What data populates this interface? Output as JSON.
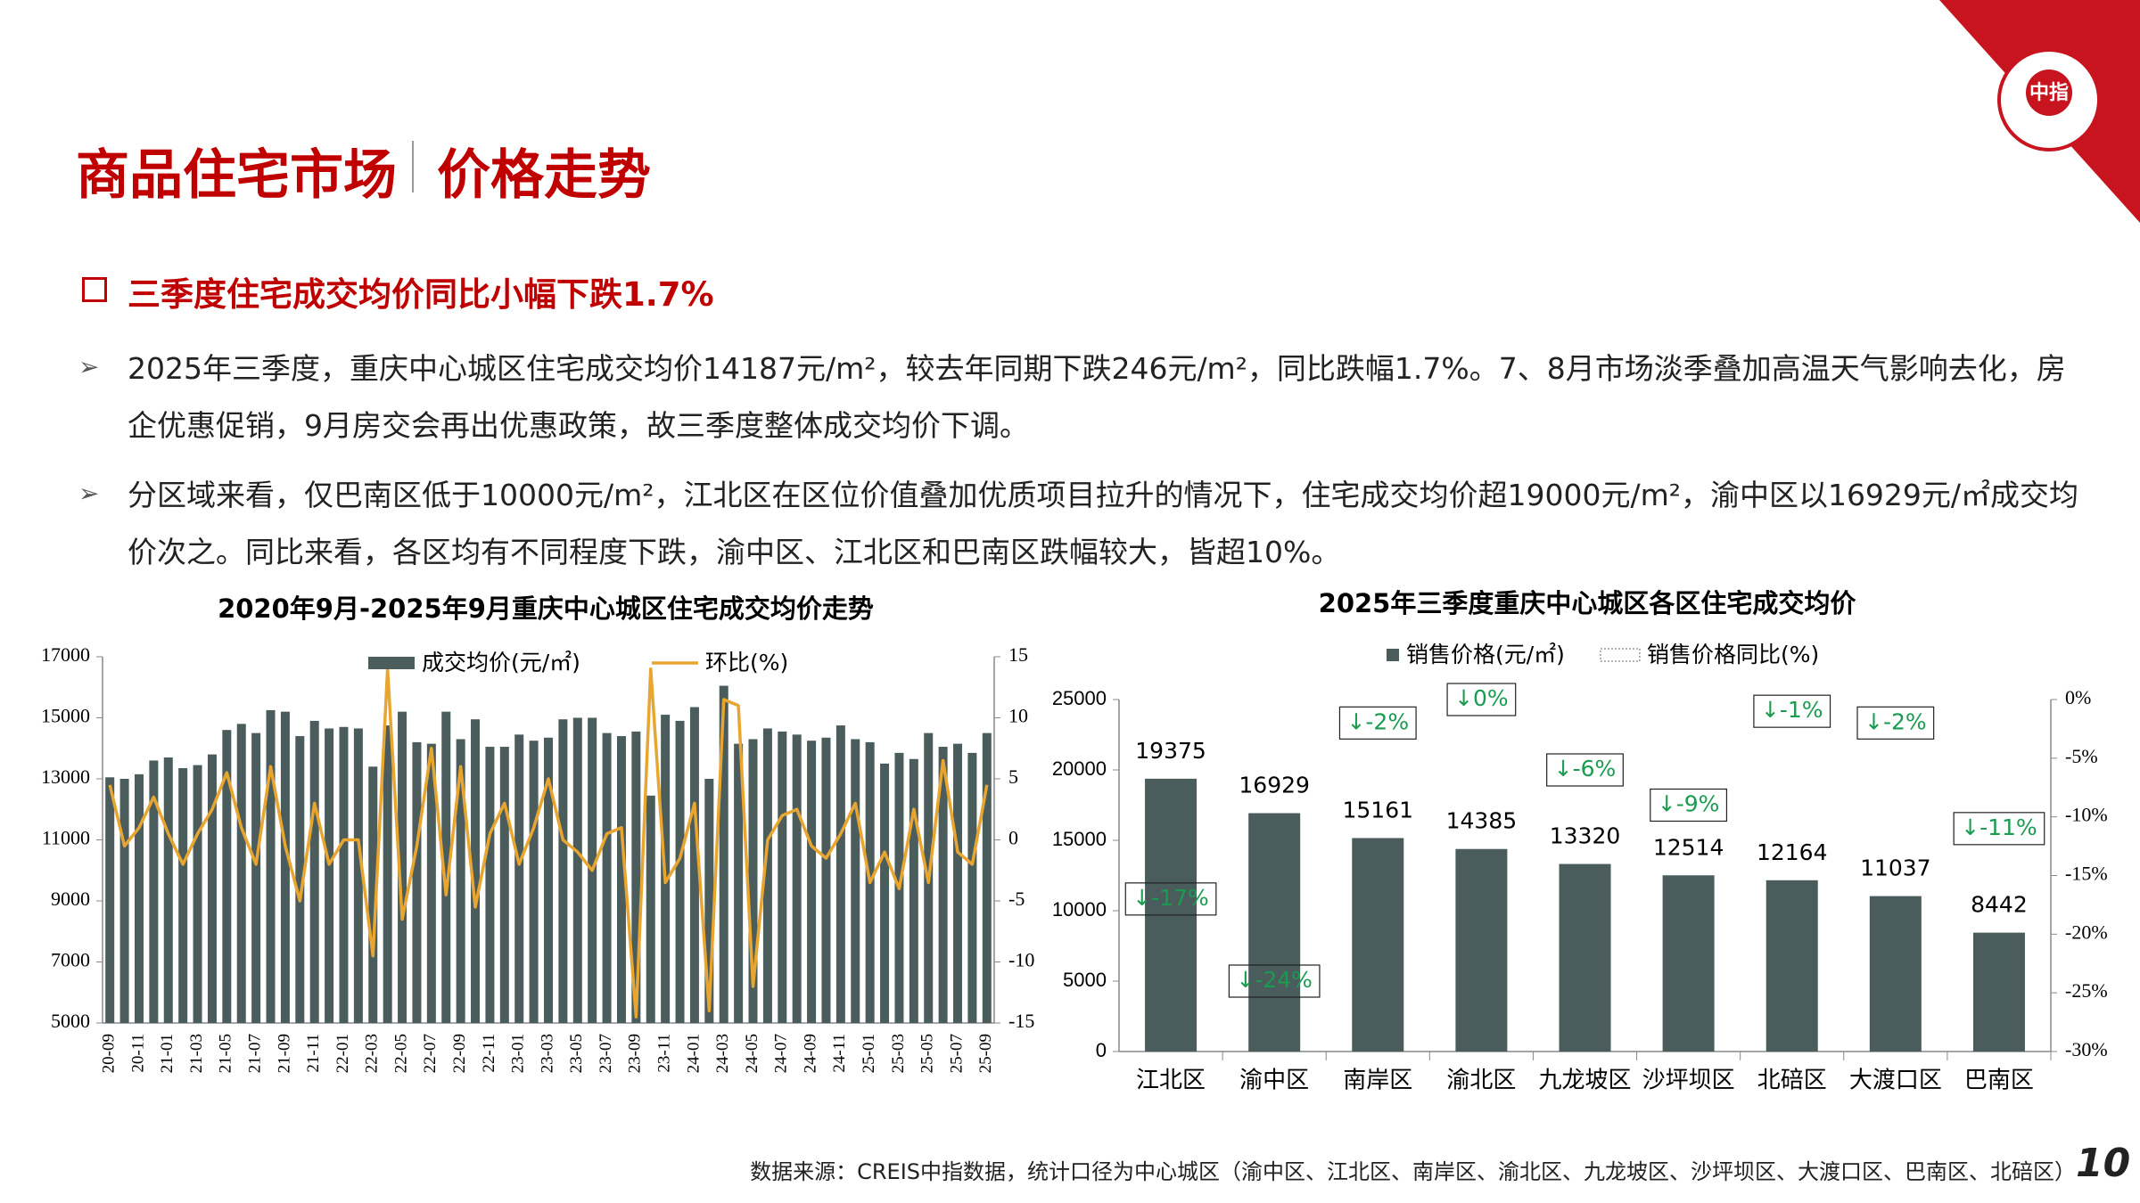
{
  "header": {
    "title": "商品住宅市场",
    "title_suffix": "价格走势",
    "logo": "中指"
  },
  "subtitle": "三季度住宅成交均价同比小幅下跌1.7%",
  "bullets": [
    "2025年三季度，重庆中心城区住宅成交均价14187元/m²，较去年同期下跌246元/m²，同比跌幅1.7%。7、8月市场淡季叠加高温天气影响去化，房企优惠促销，9月房交会再出优惠政策，故三季度整体成交均价下调。",
    "分区域来看，仅巴南区低于10000元/m²，江北区在区位价值叠加优质项目拉升的情况下，住宅成交均价超19000元/m²，渝中区以16929元/㎡成交均价次之。同比来看，各区均有不同程度下跌，渝中区、江北区和巴南区跌幅较大，皆超10%。"
  ],
  "chart_data": [
    {
      "type": "combo",
      "title": "2020年9月-2025年9月重庆中心城区住宅成交均价走势",
      "categories": [
        "20-09",
        null,
        "20-11",
        null,
        "21-01",
        null,
        "21-03",
        null,
        "21-05",
        null,
        "21-07",
        null,
        "21-09",
        null,
        "21-11",
        null,
        "22-01",
        null,
        "22-03",
        null,
        "22-05",
        null,
        "22-07",
        null,
        "22-09",
        null,
        "22-11",
        null,
        "23-01",
        null,
        "23-03",
        null,
        "23-05",
        null,
        "23-07",
        null,
        "23-09",
        null,
        "23-11",
        null,
        "24-01",
        null,
        "24-03",
        null,
        "24-05",
        null,
        "24-07",
        null,
        "24-09",
        null,
        "24-11",
        null,
        "25-01",
        null,
        "25-03",
        null,
        "25-05",
        null,
        "25-07",
        null,
        "25-09"
      ],
      "series": [
        {
          "name": "成交均价(元/㎡)",
          "type": "bar",
          "color": "#4b5c5c",
          "values": [
            13050,
            13000,
            13150,
            13600,
            13700,
            13350,
            13450,
            13800,
            14600,
            14800,
            14500,
            15250,
            15200,
            14400,
            14900,
            14650,
            14700,
            14650,
            13400,
            14750,
            15200,
            14200,
            14150,
            15200,
            14300,
            14950,
            14050,
            14050,
            14450,
            14250,
            14350,
            14950,
            15000,
            15000,
            14500,
            14400,
            14550,
            12450,
            15100,
            14900,
            15350,
            13000,
            16050,
            14150,
            14300,
            14650,
            14550,
            14450,
            14250,
            14350,
            14750,
            14300,
            14200,
            13500,
            13850,
            13650,
            14500,
            14050,
            14150,
            13850,
            14500
          ]
        },
        {
          "name": "环比(%)",
          "type": "line",
          "axis": "y2",
          "color": "#e8a630",
          "values": [
            4.5,
            -0.5,
            1,
            3.5,
            0.5,
            -2,
            0.5,
            2.5,
            5.5,
            1,
            -2,
            6,
            -0.5,
            -5,
            3,
            -2,
            0,
            0,
            -9.5,
            14,
            -6.5,
            -0.5,
            7.5,
            -4.5,
            6,
            -5.5,
            0.5,
            3,
            -2,
            1,
            5,
            0,
            -1,
            -2.5,
            0.5,
            1,
            -14.5,
            14,
            -3.5,
            -1.5,
            3,
            -14,
            11.5,
            11,
            -12,
            0,
            2,
            2.5,
            -0.5,
            -1.5,
            0.5,
            3,
            -3.5,
            -1,
            -4,
            2.5,
            -3.5,
            6.5,
            -1,
            -2,
            4.5
          ]
        }
      ],
      "ylim": [
        5000,
        17000
      ],
      "yticks": [
        5000,
        7000,
        9000,
        11000,
        13000,
        15000,
        17000
      ],
      "y2lim": [
        -15,
        15
      ],
      "y2ticks": [
        -15,
        -10,
        -5,
        0,
        5,
        10,
        15
      ]
    },
    {
      "type": "bar",
      "title": "2025年三季度重庆中心城区各区住宅成交均价",
      "categories": [
        "江北区",
        "渝中区",
        "南岸区",
        "渝北区",
        "九龙坡区",
        "沙坪坝区",
        "北碚区",
        "大渡口区",
        "巴南区"
      ],
      "series": [
        {
          "name": "销售价格(元/㎡)",
          "type": "bar",
          "color": "#4b5c5c",
          "values": [
            19375,
            16929,
            15161,
            14385,
            13320,
            12514,
            12164,
            11037,
            8442
          ]
        },
        {
          "name": "销售价格同比(%)",
          "type": "label",
          "axis": "y2",
          "color": "#1a9c50",
          "values": [
            -17,
            -24,
            -2,
            0,
            -6,
            -9,
            -1,
            -2,
            -11
          ],
          "value_labels": [
            "↓-17%",
            "↓-24%",
            "↓-2%",
            "↓0%",
            "↓-6%",
            "↓-9%",
            "↓-1%",
            "↓-2%",
            "↓-11%"
          ]
        }
      ],
      "ylim": [
        0,
        25000
      ],
      "yticks": [
        0,
        5000,
        10000,
        15000,
        20000,
        25000
      ],
      "y2lim": [
        -30,
        0
      ],
      "y2ticks": [
        {
          "value": -30,
          "label": "-30%"
        },
        {
          "value": -25,
          "label": "-25%"
        },
        {
          "value": -20,
          "label": "-20%"
        },
        {
          "value": -15,
          "label": "-15%"
        },
        {
          "value": -10,
          "label": "-10%"
        },
        {
          "value": -5,
          "label": "-5%"
        },
        {
          "value": 0,
          "label": "0%"
        }
      ]
    }
  ],
  "footer": {
    "source": "数据来源：CREIS中指数据，统计口径为中心城区（渝中区、江北区、南岸区、渝北区、九龙坡区、沙坪坝区、大渡口区、巴南区、北碚区）",
    "page": "10"
  }
}
